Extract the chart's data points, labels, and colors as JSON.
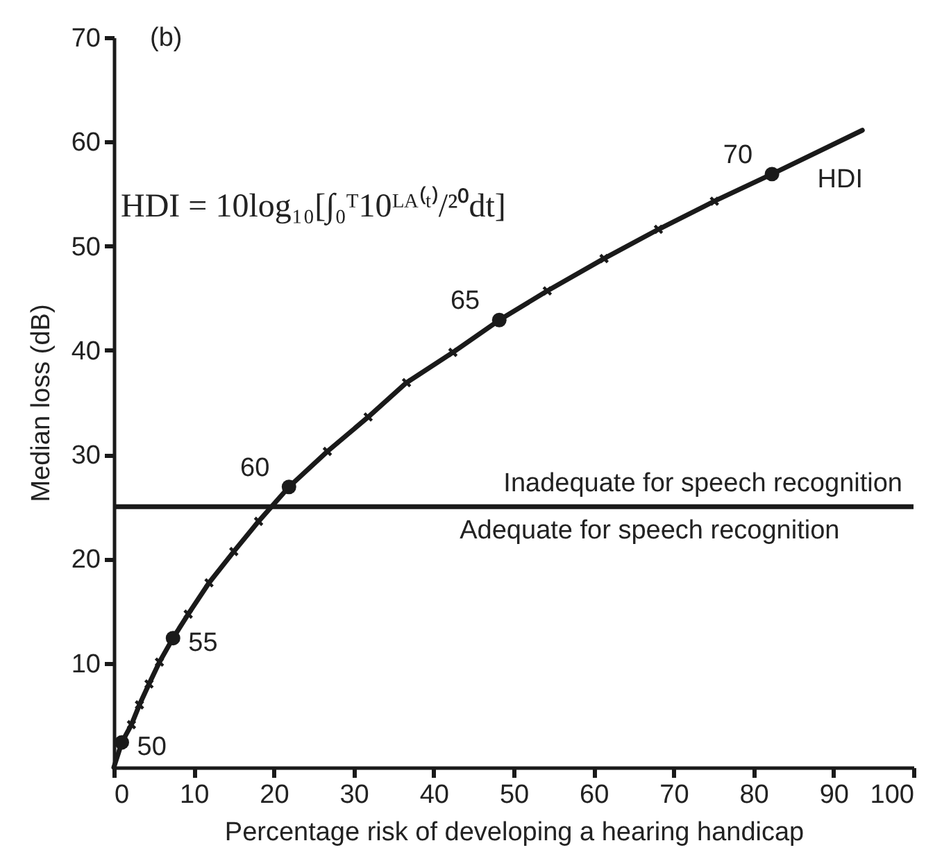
{
  "chart_data": {
    "type": "line",
    "xlabel": "Percentage risk of developing a hearing handicap",
    "ylabel": "Median loss (dB)",
    "xlim": [
      0,
      100
    ],
    "ylim": [
      0,
      70
    ],
    "xticks": [
      0,
      10,
      20,
      30,
      40,
      50,
      60,
      70,
      80,
      90,
      100
    ],
    "yticks": [
      10,
      20,
      30,
      40,
      50,
      60,
      70
    ],
    "series": [
      {
        "marker": "none",
        "line_style": "solid",
        "color": "#1a1a1a",
        "x": [
          0,
          1.0,
          2.2,
          3.2,
          4.4,
          5.7,
          7.4,
          9.3,
          11.9,
          15.0,
          18.1,
          21.9,
          26.7,
          31.8,
          36.6,
          42.4,
          48.2,
          54.2,
          61.3,
          68.1,
          75.1,
          82.3,
          93.6
        ],
        "values": [
          0,
          2.4,
          4.1,
          6.0,
          8.0,
          10.1,
          12.4,
          14.7,
          17.7,
          20.7,
          23.6,
          26.9,
          30.3,
          33.6,
          36.9,
          39.8,
          42.9,
          45.7,
          48.8,
          51.6,
          54.3,
          56.9,
          61.1
        ]
      },
      {
        "type": "scatter",
        "marker": "cross",
        "color": "#1a1a1a",
        "x": [
          2.2,
          3.2,
          4.4,
          5.7,
          9.3,
          11.9,
          15.0,
          18.1,
          26.7,
          31.8,
          36.6,
          42.4,
          54.2,
          61.3,
          68.1,
          75.1
        ],
        "values": [
          4.1,
          6.0,
          8.0,
          10.1,
          14.7,
          17.7,
          20.7,
          23.6,
          30.3,
          33.6,
          36.9,
          39.8,
          45.7,
          48.8,
          51.6,
          54.3
        ]
      },
      {
        "type": "scatter",
        "marker": "circle",
        "color": "#1a1a1a",
        "x": [
          1.0,
          7.4,
          21.9,
          48.2,
          82.3
        ],
        "values": [
          2.4,
          12.4,
          26.9,
          42.9,
          56.9
        ]
      }
    ],
    "ref_lines": [
      {
        "axis": "y",
        "value": 25,
        "label": "Inadequate for speech recognition",
        "color": "#1a1a1a"
      }
    ],
    "annotations": [
      "(b)",
      "HDI = 10log₁₀[∫₀ᵀ10ᴸᴬ⁽ᵗ⁾/²⁰dt]",
      {
        "text": "Adequate for speech recognition",
        "x": 67,
        "y": 25
      },
      {
        "text": "50",
        "x": 1.0,
        "y": 2.4
      },
      {
        "text": "55",
        "x": 7.4,
        "y": 12.4
      },
      {
        "text": "60",
        "x": 21.9,
        "y": 26.9
      },
      {
        "text": "65",
        "x": 48.2,
        "y": 42.9
      },
      {
        "text": "70",
        "x": 82.3,
        "y": 56.9
      },
      {
        "text": "HDI",
        "x": 93.6,
        "y": 61.1
      }
    ]
  }
}
